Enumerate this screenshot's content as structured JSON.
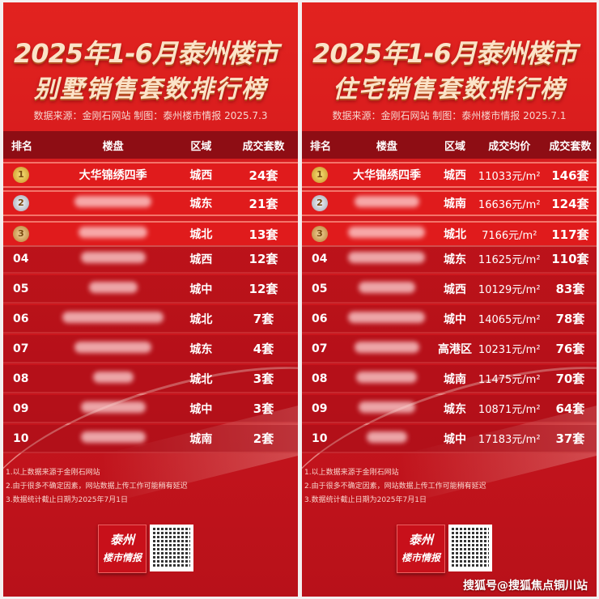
{
  "panels": [
    {
      "title_line1": "2025年1-6月泰州楼市",
      "title_line2": "别墅销售套数排行榜",
      "source": "数据来源：金刚石网站  制图：泰州楼市情报  2025.7.3",
      "columns": [
        "排名",
        "楼盘",
        "区域",
        "成交套数"
      ],
      "rows": [
        {
          "rank": "1",
          "name": "大华锦绣四季",
          "area": "城西",
          "units": "24套"
        },
        {
          "rank": "2",
          "name": "",
          "area": "城东",
          "units": "21套"
        },
        {
          "rank": "3",
          "name": "",
          "area": "城北",
          "units": "13套"
        },
        {
          "rank": "04",
          "name": "",
          "area": "城西",
          "units": "12套"
        },
        {
          "rank": "05",
          "name": "",
          "area": "城中",
          "units": "12套"
        },
        {
          "rank": "06",
          "name": "",
          "area": "城北",
          "units": "7套"
        },
        {
          "rank": "07",
          "name": "",
          "area": "城东",
          "units": "4套"
        },
        {
          "rank": "08",
          "name": "",
          "area": "城北",
          "units": "3套"
        },
        {
          "rank": "09",
          "name": "",
          "area": "城中",
          "units": "3套"
        },
        {
          "rank": "10",
          "name": "",
          "area": "城南",
          "units": "2套"
        }
      ]
    },
    {
      "title_line1": "2025年1-6月泰州楼市",
      "title_line2": "住宅销售套数排行榜",
      "source": "数据来源：金刚石网站  制图：泰州楼市情报  2025.7.1",
      "columns": [
        "排名",
        "楼盘",
        "区域",
        "成交均价",
        "成交套数"
      ],
      "rows": [
        {
          "rank": "1",
          "name": "大华锦绣四季",
          "area": "城西",
          "price": "11033元/m²",
          "units": "146套"
        },
        {
          "rank": "2",
          "name": "",
          "area": "城南",
          "price": "16636元/m²",
          "units": "124套"
        },
        {
          "rank": "3",
          "name": "",
          "area": "城北",
          "price": "7166元/m²",
          "units": "117套"
        },
        {
          "rank": "04",
          "name": "",
          "area": "城东",
          "price": "11625元/m²",
          "units": "110套"
        },
        {
          "rank": "05",
          "name": "",
          "area": "城西",
          "price": "10129元/m²",
          "units": "83套"
        },
        {
          "rank": "06",
          "name": "",
          "area": "城中",
          "price": "14065元/m²",
          "units": "78套"
        },
        {
          "rank": "07",
          "name": "",
          "area": "高港区",
          "price": "10231元/m²",
          "units": "76套"
        },
        {
          "rank": "08",
          "name": "",
          "area": "城南",
          "price": "11475元/m²",
          "units": "70套"
        },
        {
          "rank": "09",
          "name": "",
          "area": "城东",
          "price": "10871元/m²",
          "units": "64套"
        },
        {
          "rank": "10",
          "name": "",
          "area": "城中",
          "price": "17183元/m²",
          "units": "37套"
        }
      ]
    }
  ],
  "notes": [
    "1.以上数据来源于金刚石网站",
    "2.由于很多不确定因素，网站数据上传工作可能稍有延迟",
    "3.数据统计截止日期为2025年7月1日"
  ],
  "logo_text": [
    "泰州",
    "楼市情报"
  ],
  "watermark": "搜狐号@搜狐焦点铜川站",
  "colors": {
    "background": "#d81c1e",
    "header_row": "#8e0d14",
    "title": "#fbe3c8",
    "gold": "#e8b840",
    "silver": "#c8ccd4",
    "bronze": "#d6a060"
  }
}
